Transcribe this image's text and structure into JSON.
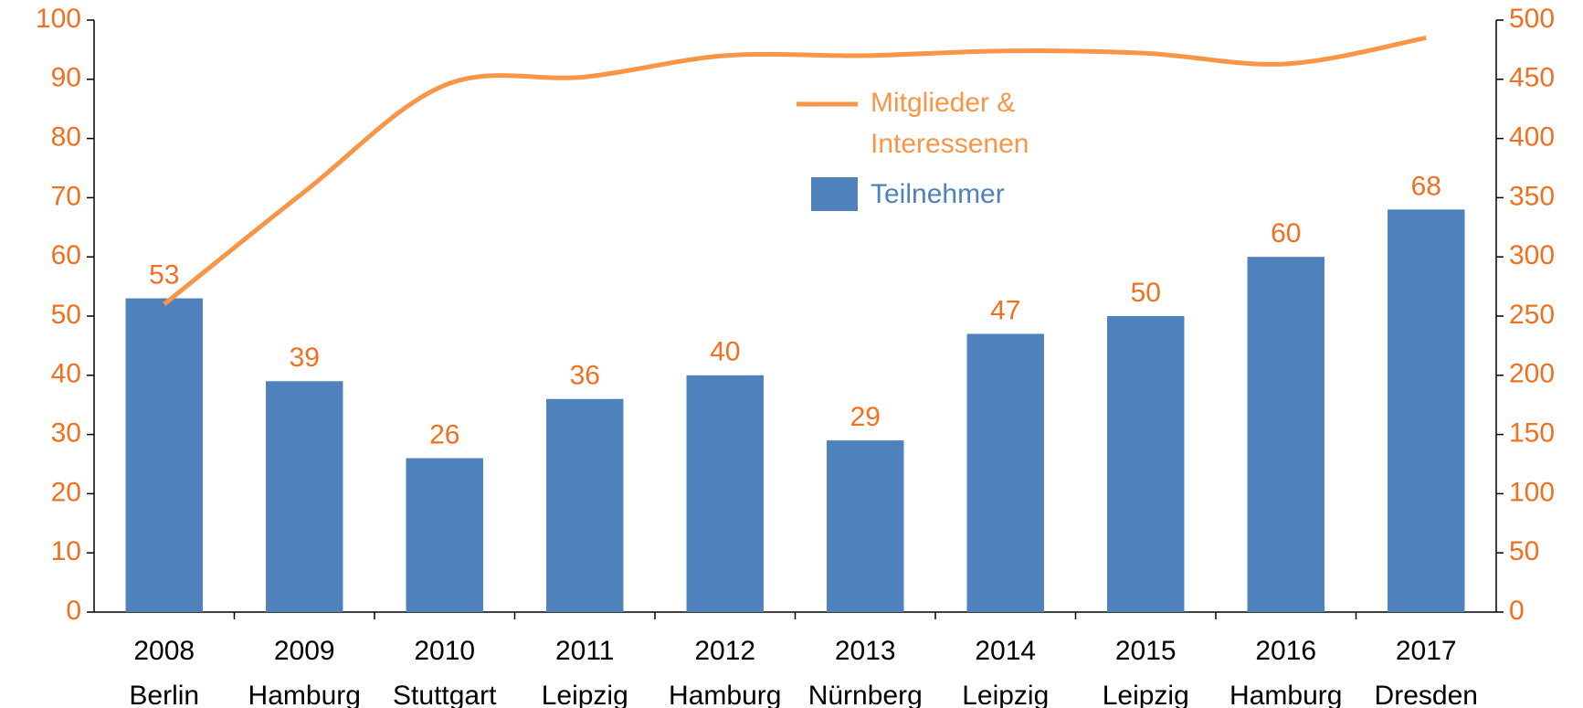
{
  "chart_data": {
    "type": "bar_line",
    "categories": [
      [
        "2008",
        "Berlin"
      ],
      [
        "2009",
        "Hamburg"
      ],
      [
        "2010",
        "Stuttgart"
      ],
      [
        "2011",
        "Leipzig"
      ],
      [
        "2012",
        "Hamburg"
      ],
      [
        "2013",
        "Nürnberg"
      ],
      [
        "2014",
        "Leipzig"
      ],
      [
        "2015",
        "Leipzig"
      ],
      [
        "2016",
        "Hamburg"
      ],
      [
        "2017",
        "Dresden"
      ]
    ],
    "series": [
      {
        "name": "Teilnehmer",
        "type": "bar",
        "color": "#4f81bd",
        "values": [
          53,
          39,
          26,
          36,
          40,
          29,
          47,
          50,
          60,
          68
        ]
      },
      {
        "name": "Mitglieder & Interessenen",
        "type": "line",
        "axis": "y2",
        "color": "#f79646",
        "values": [
          260,
          355,
          445,
          452,
          470,
          470,
          474,
          472,
          463,
          485
        ]
      }
    ],
    "ylim": [
      0,
      100
    ],
    "yticks": [
      0,
      10,
      20,
      30,
      40,
      50,
      60,
      70,
      80,
      90,
      100
    ],
    "y2lim": [
      0,
      500
    ],
    "y2ticks": [
      0,
      50,
      100,
      150,
      200,
      250,
      300,
      350,
      400,
      450,
      500
    ],
    "value_label_color": "#f07020",
    "tick_label_color": "#f07020",
    "grid": false
  }
}
